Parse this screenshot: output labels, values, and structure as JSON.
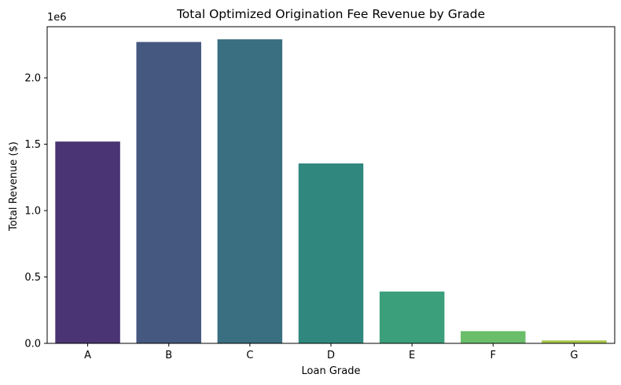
{
  "chart_data": {
    "type": "bar",
    "title": "Total Optimized Origination Fee Revenue by Grade",
    "xlabel": "Loan Grade",
    "ylabel": "Total Revenue ($)",
    "offset_label": "1e6",
    "categories": [
      "A",
      "B",
      "C",
      "D",
      "E",
      "F",
      "G"
    ],
    "values": [
      1520000,
      2270000,
      2290000,
      1355000,
      390000,
      92000,
      22000
    ],
    "colors": [
      "#4b3473",
      "#45587f",
      "#396f80",
      "#2f877e",
      "#3a9f7a",
      "#6abe69",
      "#a7c64a"
    ],
    "ylim": [
      0,
      2385000
    ],
    "yticks": [
      0,
      500000,
      1000000,
      1500000,
      2000000
    ],
    "ytick_labels": [
      "0.0",
      "0.5",
      "1.0",
      "1.5",
      "2.0"
    ],
    "grid": false,
    "legend": "none"
  }
}
